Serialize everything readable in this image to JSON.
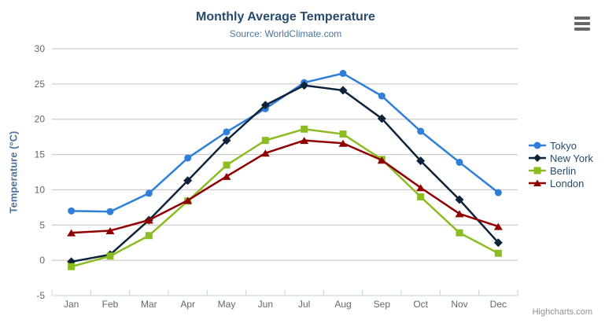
{
  "header": {
    "title": "Monthly Average Temperature",
    "subtitle": "Source: WorldClimate.com"
  },
  "credit": "Highcharts.com",
  "context_menu": {
    "icon": "hamburger-menu-icon"
  },
  "colors": {
    "title": "#274b6d",
    "subtitle": "#4d759e",
    "axis_label": "#666666",
    "axis_title": "#4d759e",
    "grid": "#c0c0c0",
    "axis_line": "#c0d0e0",
    "legend_text": "#274b6d",
    "credit": "#909090",
    "background": "#ffffff"
  },
  "chart_data": {
    "type": "line",
    "title": "Monthly Average Temperature",
    "subtitle": "Source: WorldClimate.com",
    "xlabel": "",
    "ylabel": "Temperature (°C)",
    "categories": [
      "Jan",
      "Feb",
      "Mar",
      "Apr",
      "May",
      "Jun",
      "Jul",
      "Aug",
      "Sep",
      "Oct",
      "Nov",
      "Dec"
    ],
    "ylim": [
      -5,
      30
    ],
    "ytick_step": 5,
    "grid": true,
    "legend_position": "right",
    "series": [
      {
        "name": "Tokyo",
        "color": "#2f7ed8",
        "marker": "circle",
        "values": [
          7.0,
          6.9,
          9.5,
          14.5,
          18.2,
          21.5,
          25.2,
          26.5,
          23.3,
          18.3,
          13.9,
          9.6
        ]
      },
      {
        "name": "New York",
        "color": "#0d233a",
        "marker": "diamond",
        "values": [
          -0.2,
          0.8,
          5.7,
          11.3,
          17.0,
          22.0,
          24.8,
          24.1,
          20.1,
          14.1,
          8.6,
          2.5
        ]
      },
      {
        "name": "Berlin",
        "color": "#8bbc21",
        "marker": "square",
        "values": [
          -0.9,
          0.6,
          3.5,
          8.4,
          13.5,
          17.0,
          18.6,
          17.9,
          14.3,
          9.0,
          3.9,
          1.0
        ]
      },
      {
        "name": "London",
        "color": "#910000",
        "marker": "triangle",
        "values": [
          3.9,
          4.2,
          5.7,
          8.5,
          11.9,
          15.2,
          17.0,
          16.6,
          14.2,
          10.3,
          6.6,
          4.8
        ]
      }
    ]
  }
}
